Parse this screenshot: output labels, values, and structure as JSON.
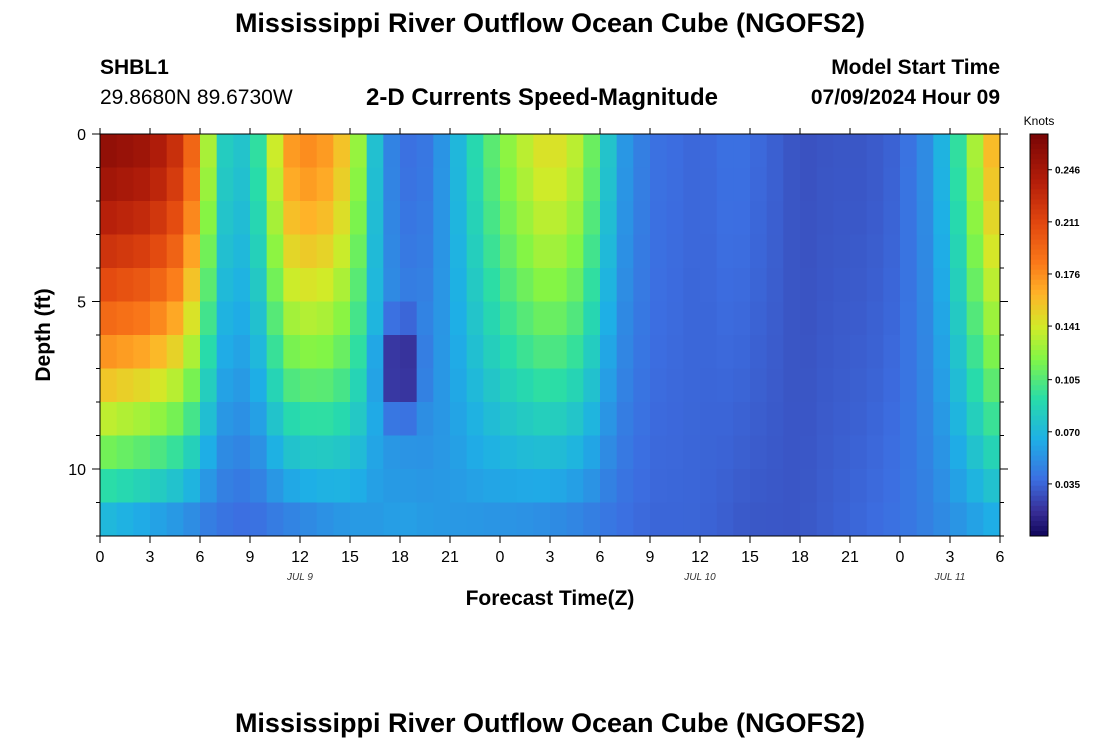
{
  "header": {
    "title": "Mississippi River Outflow Ocean Cube (NGOFS2)",
    "station_id": "SHBL1",
    "station_coords": "29.8680N  89.6730W",
    "variable": "2-D Currents Speed-Magnitude",
    "model_start_label": "Model Start Time",
    "model_start_value": "07/09/2024 Hour 09"
  },
  "footer": {
    "title": "Mississippi River Outflow Ocean Cube (NGOFS2)"
  },
  "chart_data": {
    "type": "heatmap",
    "title": "2-D Currents Speed-Magnitude",
    "xlabel": "Forecast Time(Z)",
    "ylabel": "Depth (ft)",
    "x_range_hours": [
      0,
      54
    ],
    "y_range_ft": [
      0,
      12
    ],
    "y_ticks": [
      0,
      5,
      10
    ],
    "x_ticks": [
      {
        "h": 0,
        "label": "0"
      },
      {
        "h": 3,
        "label": "3"
      },
      {
        "h": 6,
        "label": "6"
      },
      {
        "h": 9,
        "label": "9"
      },
      {
        "h": 12,
        "label": "12"
      },
      {
        "h": 15,
        "label": "15"
      },
      {
        "h": 18,
        "label": "18"
      },
      {
        "h": 21,
        "label": "21"
      },
      {
        "h": 24,
        "label": "0"
      },
      {
        "h": 27,
        "label": "3"
      },
      {
        "h": 30,
        "label": "6"
      },
      {
        "h": 33,
        "label": "9"
      },
      {
        "h": 36,
        "label": "12"
      },
      {
        "h": 39,
        "label": "15"
      },
      {
        "h": 42,
        "label": "18"
      },
      {
        "h": 45,
        "label": "21"
      },
      {
        "h": 48,
        "label": "0"
      },
      {
        "h": 51,
        "label": "3"
      },
      {
        "h": 54,
        "label": "6"
      }
    ],
    "date_labels": [
      {
        "h": 12,
        "label": "JUL 9"
      },
      {
        "h": 36,
        "label": "JUL 10"
      },
      {
        "h": 51,
        "label": "JUL 11"
      }
    ],
    "colorbar": {
      "unit": "Knots",
      "min": 0.0,
      "max": 0.27,
      "ticks": [
        0.035,
        0.07,
        0.105,
        0.141,
        0.176,
        0.211,
        0.246
      ],
      "tick_labels": [
        "0.035",
        "0.070",
        "0.105",
        "0.141",
        "0.176",
        "0.211",
        "0.246"
      ]
    },
    "time_step_hours": 1,
    "depth_levels_ft": [
      0,
      1,
      2,
      3,
      4,
      5,
      6,
      7,
      8,
      9,
      10,
      11,
      12
    ],
    "surface_speed_keyframes": [
      {
        "h": 0,
        "v": 0.26
      },
      {
        "h": 3,
        "v": 0.25
      },
      {
        "h": 5,
        "v": 0.22
      },
      {
        "h": 6,
        "v": 0.17
      },
      {
        "h": 7,
        "v": 0.09
      },
      {
        "h": 8,
        "v": 0.075
      },
      {
        "h": 9,
        "v": 0.08
      },
      {
        "h": 10,
        "v": 0.11
      },
      {
        "h": 11,
        "v": 0.17
      },
      {
        "h": 13,
        "v": 0.18
      },
      {
        "h": 15,
        "v": 0.15
      },
      {
        "h": 16,
        "v": 0.1
      },
      {
        "h": 17,
        "v": 0.05
      },
      {
        "h": 19,
        "v": 0.035
      },
      {
        "h": 21,
        "v": 0.06
      },
      {
        "h": 23,
        "v": 0.1
      },
      {
        "h": 25,
        "v": 0.13
      },
      {
        "h": 27,
        "v": 0.15
      },
      {
        "h": 29,
        "v": 0.13
      },
      {
        "h": 31,
        "v": 0.06
      },
      {
        "h": 33,
        "v": 0.04
      },
      {
        "h": 36,
        "v": 0.035
      },
      {
        "h": 38,
        "v": 0.04
      },
      {
        "h": 40,
        "v": 0.035
      },
      {
        "h": 42,
        "v": 0.028
      },
      {
        "h": 44,
        "v": 0.03
      },
      {
        "h": 46,
        "v": 0.03
      },
      {
        "h": 48,
        "v": 0.035
      },
      {
        "h": 50,
        "v": 0.055
      },
      {
        "h": 51,
        "v": 0.08
      },
      {
        "h": 52,
        "v": 0.11
      },
      {
        "h": 53,
        "v": 0.15
      },
      {
        "h": 54,
        "v": 0.17
      }
    ],
    "bottom_speed_keyframes": [
      {
        "h": 0,
        "v": 0.06
      },
      {
        "h": 3,
        "v": 0.05
      },
      {
        "h": 6,
        "v": 0.04
      },
      {
        "h": 9,
        "v": 0.035
      },
      {
        "h": 12,
        "v": 0.04
      },
      {
        "h": 15,
        "v": 0.05
      },
      {
        "h": 18,
        "v": 0.06
      },
      {
        "h": 21,
        "v": 0.055
      },
      {
        "h": 24,
        "v": 0.05
      },
      {
        "h": 27,
        "v": 0.045
      },
      {
        "h": 30,
        "v": 0.04
      },
      {
        "h": 33,
        "v": 0.035
      },
      {
        "h": 36,
        "v": 0.035
      },
      {
        "h": 39,
        "v": 0.03
      },
      {
        "h": 42,
        "v": 0.03
      },
      {
        "h": 45,
        "v": 0.035
      },
      {
        "h": 48,
        "v": 0.04
      },
      {
        "h": 51,
        "v": 0.05
      },
      {
        "h": 54,
        "v": 0.06
      }
    ],
    "minimum_speed_spot": {
      "h": 18,
      "depth_ft": 7,
      "v": 0.0
    }
  }
}
